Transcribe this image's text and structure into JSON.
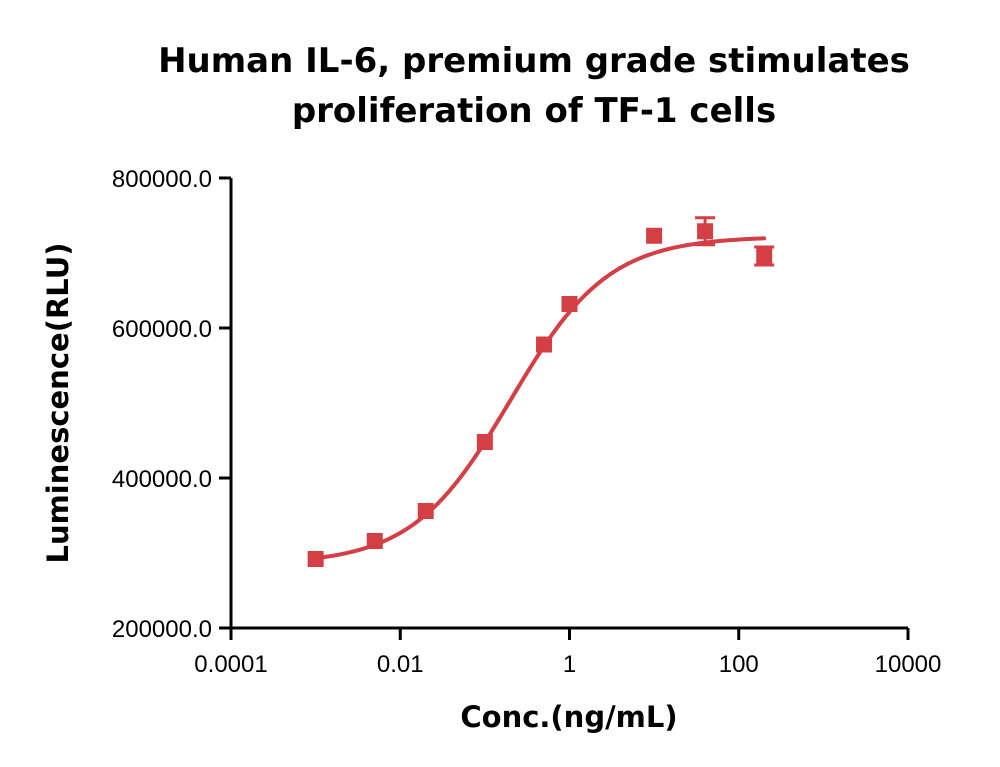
{
  "chart_data": {
    "type": "scatter",
    "title_lines": [
      "Human IL-6, premium grade stimulates",
      "proliferation of TF-1 cells"
    ],
    "xlabel": "Conc.(ng/mL)",
    "ylabel": "Luminescence(RLU)",
    "x_scale": "log10",
    "xlim": [
      0.0001,
      10000
    ],
    "ylim": [
      200000,
      800000
    ],
    "x_ticks": [
      {
        "value": 0.0001,
        "label": "0.0001"
      },
      {
        "value": 0.01,
        "label": "0.01"
      },
      {
        "value": 1,
        "label": "1"
      },
      {
        "value": 100,
        "label": "100"
      },
      {
        "value": 10000,
        "label": "10000"
      }
    ],
    "y_ticks": [
      {
        "value": 200000,
        "label": "200000.0"
      },
      {
        "value": 400000,
        "label": "400000.0"
      },
      {
        "value": 600000,
        "label": "600000.0"
      },
      {
        "value": 800000,
        "label": "800000.0"
      }
    ],
    "series": [
      {
        "marker": "square",
        "color": "#d43f45",
        "points": [
          {
            "x": 0.001,
            "y": 292000,
            "err": 0
          },
          {
            "x": 0.005,
            "y": 316000,
            "err": 0
          },
          {
            "x": 0.02,
            "y": 356000,
            "err": 0
          },
          {
            "x": 0.1,
            "y": 448000,
            "err": 0
          },
          {
            "x": 0.5,
            "y": 578000,
            "err": 0
          },
          {
            "x": 1,
            "y": 632000,
            "err": 0
          },
          {
            "x": 10,
            "y": 723000,
            "err": 0
          },
          {
            "x": 40,
            "y": 729000,
            "err": 18000
          },
          {
            "x": 200,
            "y": 696000,
            "err": 12000
          }
        ],
        "fit": {
          "model": "4PL",
          "bottom": 285000,
          "top": 722000,
          "ec50": 0.2,
          "hill": 0.75,
          "x_range": [
            0.001,
            200
          ]
        }
      }
    ],
    "grid": false,
    "legend": "none"
  }
}
